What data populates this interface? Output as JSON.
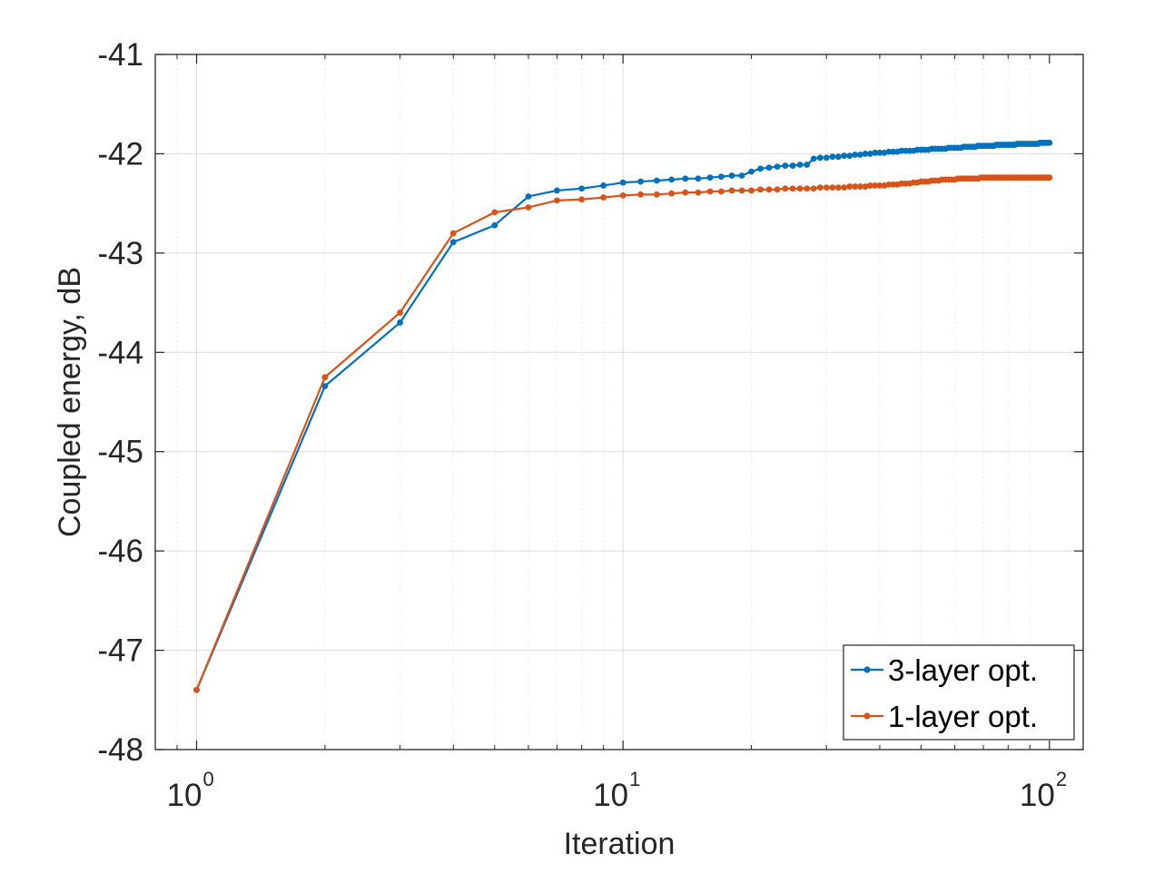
{
  "chart_data": {
    "type": "line",
    "title": "",
    "xlabel": "Iteration",
    "ylabel": "Coupled energy, dB",
    "xscale": "log",
    "xlim": [
      0.8,
      120
    ],
    "ylim": [
      -48,
      -41
    ],
    "grid": true,
    "minor_grid": true,
    "legend_position": "bottom-right",
    "x_ticks": [
      {
        "value": 1,
        "base": "10",
        "exp": "0"
      },
      {
        "value": 10,
        "base": "10",
        "exp": "1"
      },
      {
        "value": 100,
        "base": "10",
        "exp": "2"
      }
    ],
    "y_ticks": [
      {
        "value": -48,
        "label": "-48"
      },
      {
        "value": -47,
        "label": "-47"
      },
      {
        "value": -46,
        "label": "-46"
      },
      {
        "value": -45,
        "label": "-45"
      },
      {
        "value": -44,
        "label": "-44"
      },
      {
        "value": -43,
        "label": "-43"
      },
      {
        "value": -42,
        "label": "-42"
      },
      {
        "value": -41,
        "label": "-41"
      }
    ],
    "series": [
      {
        "name": "3-layer opt.",
        "color": "#0072BD",
        "x": [
          1,
          2,
          3,
          4,
          5,
          6,
          7,
          8,
          9,
          10,
          11,
          12,
          13,
          14,
          15,
          16,
          17,
          18,
          19,
          20,
          21,
          22,
          23,
          24,
          25,
          26,
          27,
          28,
          29,
          30,
          31,
          32,
          33,
          34,
          35,
          36,
          37,
          38,
          39,
          40,
          41,
          42,
          43,
          44,
          45,
          46,
          47,
          48,
          49,
          50,
          51,
          52,
          53,
          54,
          55,
          56,
          57,
          58,
          59,
          60,
          61,
          62,
          63,
          64,
          65,
          66,
          67,
          68,
          69,
          70,
          71,
          72,
          73,
          74,
          75,
          76,
          77,
          78,
          79,
          80,
          81,
          82,
          83,
          84,
          85,
          86,
          87,
          88,
          89,
          90,
          91,
          92,
          93,
          94,
          95,
          96,
          97,
          98,
          99,
          100
        ],
        "values": [
          -47.4,
          -44.34,
          -43.7,
          -42.89,
          -42.72,
          -42.43,
          -42.37,
          -42.35,
          -42.32,
          -42.29,
          -42.28,
          -42.27,
          -42.26,
          -42.25,
          -42.25,
          -42.24,
          -42.23,
          -42.22,
          -42.22,
          -42.18,
          -42.15,
          -42.14,
          -42.13,
          -42.12,
          -42.12,
          -42.11,
          -42.11,
          -42.05,
          -42.04,
          -42.04,
          -42.03,
          -42.03,
          -42.02,
          -42.02,
          -42.01,
          -42.01,
          -42.0,
          -42.0,
          -41.99,
          -41.99,
          -41.99,
          -41.98,
          -41.98,
          -41.98,
          -41.97,
          -41.97,
          -41.97,
          -41.97,
          -41.96,
          -41.96,
          -41.96,
          -41.96,
          -41.95,
          -41.95,
          -41.95,
          -41.95,
          -41.95,
          -41.94,
          -41.94,
          -41.94,
          -41.94,
          -41.94,
          -41.93,
          -41.93,
          -41.93,
          -41.93,
          -41.93,
          -41.92,
          -41.92,
          -41.92,
          -41.92,
          -41.92,
          -41.92,
          -41.92,
          -41.91,
          -41.91,
          -41.91,
          -41.91,
          -41.91,
          -41.91,
          -41.91,
          -41.91,
          -41.91,
          -41.9,
          -41.9,
          -41.9,
          -41.9,
          -41.9,
          -41.9,
          -41.9,
          -41.9,
          -41.9,
          -41.9,
          -41.9,
          -41.89,
          -41.89,
          -41.89,
          -41.89,
          -41.89,
          -41.89
        ]
      },
      {
        "name": "1-layer opt.",
        "color": "#D95319",
        "x": [
          1,
          2,
          3,
          4,
          5,
          6,
          7,
          8,
          9,
          10,
          11,
          12,
          13,
          14,
          15,
          16,
          17,
          18,
          19,
          20,
          21,
          22,
          23,
          24,
          25,
          26,
          27,
          28,
          29,
          30,
          31,
          32,
          33,
          34,
          35,
          36,
          37,
          38,
          39,
          40,
          41,
          42,
          43,
          44,
          45,
          46,
          47,
          48,
          49,
          50,
          51,
          52,
          53,
          54,
          55,
          56,
          57,
          58,
          59,
          60,
          61,
          62,
          63,
          64,
          65,
          66,
          67,
          68,
          69,
          70,
          71,
          72,
          73,
          74,
          75,
          76,
          77,
          78,
          79,
          80,
          81,
          82,
          83,
          84,
          85,
          86,
          87,
          88,
          89,
          90,
          91,
          92,
          93,
          94,
          95,
          96,
          97,
          98,
          99,
          100
        ],
        "values": [
          -47.4,
          -44.25,
          -43.6,
          -42.8,
          -42.59,
          -42.54,
          -42.47,
          -42.46,
          -42.44,
          -42.42,
          -42.41,
          -42.41,
          -42.4,
          -42.39,
          -42.39,
          -42.38,
          -42.38,
          -42.37,
          -42.37,
          -42.37,
          -42.36,
          -42.36,
          -42.36,
          -42.35,
          -42.35,
          -42.35,
          -42.35,
          -42.35,
          -42.34,
          -42.34,
          -42.34,
          -42.34,
          -42.34,
          -42.33,
          -42.33,
          -42.33,
          -42.33,
          -42.32,
          -42.32,
          -42.32,
          -42.32,
          -42.31,
          -42.31,
          -42.31,
          -42.3,
          -42.3,
          -42.3,
          -42.29,
          -42.29,
          -42.28,
          -42.28,
          -42.28,
          -42.27,
          -42.27,
          -42.27,
          -42.26,
          -42.26,
          -42.26,
          -42.26,
          -42.26,
          -42.25,
          -42.25,
          -42.25,
          -42.25,
          -42.25,
          -42.25,
          -42.25,
          -42.25,
          -42.24,
          -42.24,
          -42.24,
          -42.24,
          -42.24,
          -42.24,
          -42.24,
          -42.24,
          -42.24,
          -42.24,
          -42.24,
          -42.24,
          -42.24,
          -42.24,
          -42.24,
          -42.24,
          -42.24,
          -42.24,
          -42.24,
          -42.24,
          -42.24,
          -42.24,
          -42.24,
          -42.24,
          -42.24,
          -42.24,
          -42.24,
          -42.24,
          -42.24,
          -42.24,
          -42.24,
          -42.24
        ]
      }
    ]
  }
}
